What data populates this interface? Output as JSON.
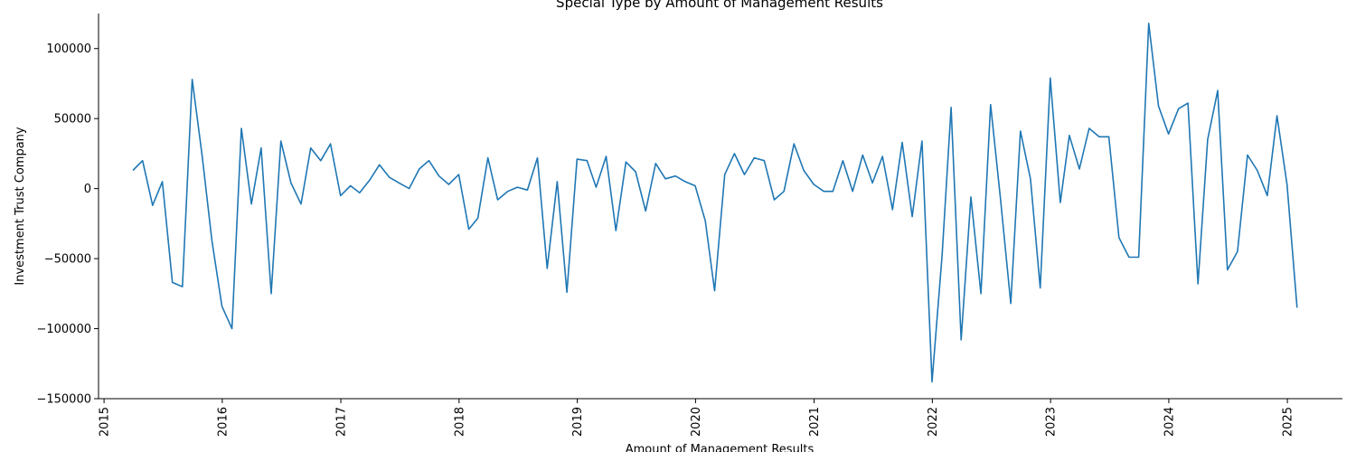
{
  "chart_data": {
    "type": "line",
    "title": "Special Type by Amount of Management Results",
    "xlabel": "Amount of Management Results",
    "ylabel": "Investment Trust Company",
    "xlim": [
      "2014-12-15",
      "2025-06-20"
    ],
    "ylim": [
      -150000,
      125000
    ],
    "x_ticks": [
      "2015",
      "2016",
      "2017",
      "2018",
      "2019",
      "2020",
      "2021",
      "2022",
      "2023",
      "2024",
      "2025"
    ],
    "y_ticks": [
      100000,
      50000,
      0,
      -50000,
      -100000,
      -150000
    ],
    "y_tick_labels": [
      "100000",
      "50000",
      "0",
      "−50000",
      "−100000",
      "−150000"
    ],
    "grid": false,
    "color": "#1f77b4",
    "series": [
      {
        "x": [
          "2015-03-31",
          "2015-04-30",
          "2015-05-31",
          "2015-06-30",
          "2015-07-31",
          "2015-08-31",
          "2015-09-30",
          "2015-10-31",
          "2015-11-30",
          "2015-12-31",
          "2016-01-31",
          "2016-02-29",
          "2016-03-31",
          "2016-04-30",
          "2016-05-31",
          "2016-06-30",
          "2016-07-31",
          "2016-08-31",
          "2016-09-30",
          "2016-10-31",
          "2016-11-30",
          "2016-12-31",
          "2017-01-31",
          "2017-02-28",
          "2017-03-31",
          "2017-04-30",
          "2017-05-31",
          "2017-06-30",
          "2017-07-31",
          "2017-08-31",
          "2017-09-30",
          "2017-10-31",
          "2017-11-30",
          "2017-12-31",
          "2018-01-31",
          "2018-02-28",
          "2018-03-31",
          "2018-04-30",
          "2018-05-31",
          "2018-06-30",
          "2018-07-31",
          "2018-08-31",
          "2018-09-30",
          "2018-10-31",
          "2018-11-30",
          "2018-12-31",
          "2019-01-31",
          "2019-02-28",
          "2019-03-31",
          "2019-04-30",
          "2019-05-31",
          "2019-06-30",
          "2019-07-31",
          "2019-08-31",
          "2019-09-30",
          "2019-10-31",
          "2019-11-30",
          "2019-12-31",
          "2020-01-31",
          "2020-02-29",
          "2020-03-31",
          "2020-04-30",
          "2020-05-31",
          "2020-06-30",
          "2020-07-31",
          "2020-08-31",
          "2020-09-30",
          "2020-10-31",
          "2020-11-30",
          "2020-12-31",
          "2021-01-31",
          "2021-02-28",
          "2021-03-31",
          "2021-04-30",
          "2021-05-31",
          "2021-06-30",
          "2021-07-31",
          "2021-08-31",
          "2021-09-30",
          "2021-10-31",
          "2021-11-30",
          "2021-12-31",
          "2022-01-31",
          "2022-02-28",
          "2022-03-31",
          "2022-04-30",
          "2022-05-31",
          "2022-06-30",
          "2022-07-31",
          "2022-08-31",
          "2022-09-30",
          "2022-10-31",
          "2022-11-30",
          "2022-12-31",
          "2023-01-31",
          "2023-02-28",
          "2023-03-31",
          "2023-04-30",
          "2023-05-31",
          "2023-06-30",
          "2023-07-31",
          "2023-08-31",
          "2023-09-30",
          "2023-10-31",
          "2023-11-30",
          "2023-12-31",
          "2024-01-31",
          "2024-02-29",
          "2024-03-31",
          "2024-04-30",
          "2024-05-31",
          "2024-06-30",
          "2024-07-31",
          "2024-08-31",
          "2024-09-30",
          "2024-10-31",
          "2024-11-30",
          "2024-12-31",
          "2025-01-31"
        ],
        "y": [
          13000,
          20000,
          -12000,
          5000,
          -67000,
          -70000,
          78000,
          23000,
          -37000,
          -84000,
          -100000,
          43000,
          -11000,
          29000,
          -75000,
          34000,
          4000,
          -11000,
          29000,
          20000,
          32000,
          -5000,
          2000,
          -3000,
          6000,
          17000,
          8000,
          4000,
          0,
          14000,
          20000,
          9000,
          3000,
          10000,
          -29000,
          -21000,
          22000,
          -8000,
          -2000,
          1000,
          -1000,
          22000,
          -57000,
          5000,
          -74000,
          21000,
          20000,
          1000,
          23000,
          -30000,
          19000,
          12000,
          -16000,
          18000,
          7000,
          9000,
          5000,
          2000,
          -23000,
          -73000,
          10000,
          25000,
          10000,
          22000,
          20000,
          -8000,
          -2000,
          32000,
          13000,
          3000,
          -2000,
          -2000,
          20000,
          -2000,
          24000,
          4000,
          23000,
          -15000,
          33000,
          -20000,
          34000,
          -138000,
          -48000,
          58000,
          -108000,
          -6000,
          -75000,
          60000,
          -9000,
          -82000,
          41000,
          7000,
          -71000,
          79000,
          -10000,
          38000,
          14000,
          43000,
          37000,
          37000,
          -35000,
          -49000,
          -49000,
          118000,
          59000,
          39000,
          57000,
          61000,
          -68000,
          35000,
          70000,
          -58000,
          -45000,
          24000,
          13000,
          -5000,
          52000,
          3000,
          -85000
        ]
      }
    ]
  }
}
